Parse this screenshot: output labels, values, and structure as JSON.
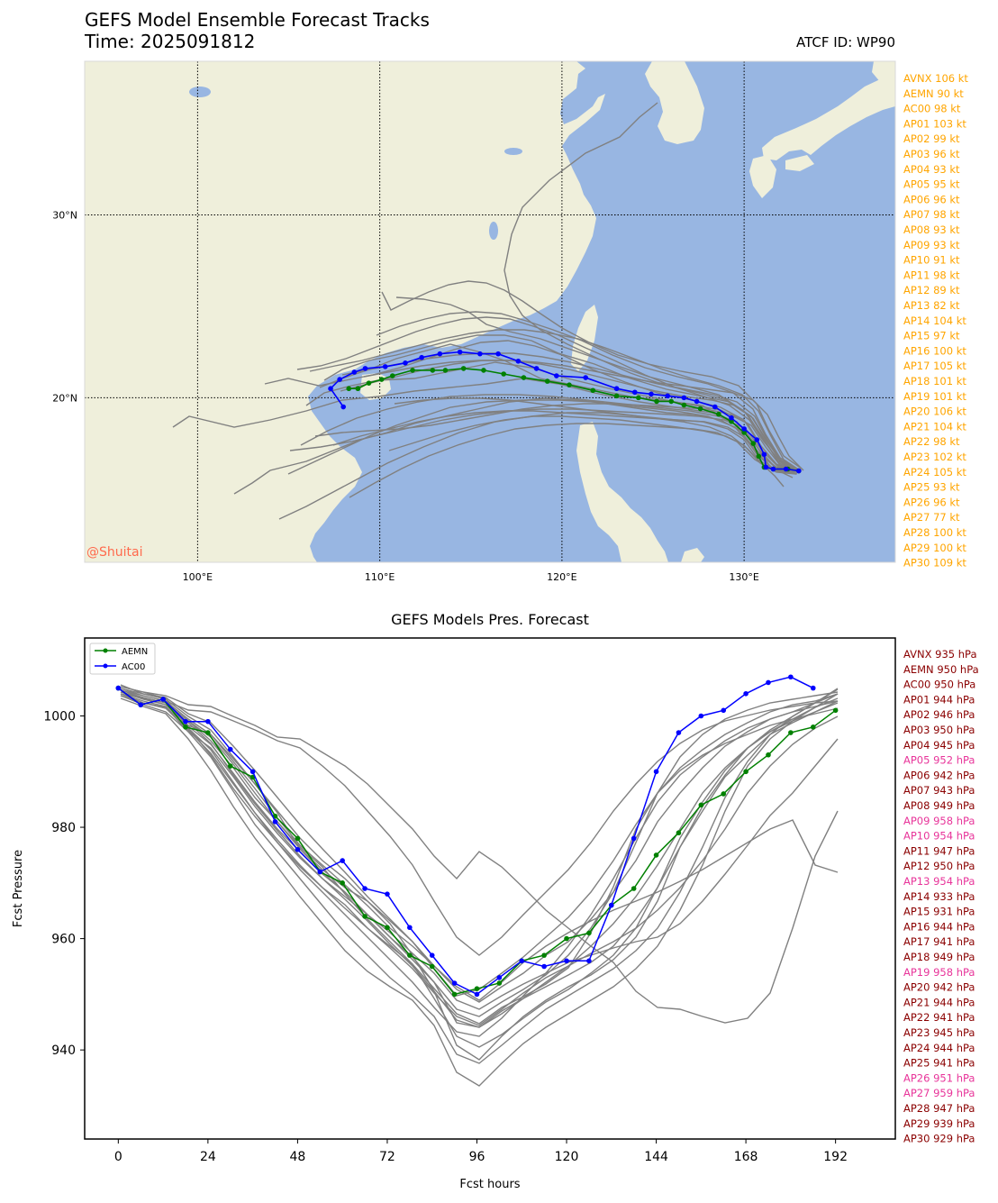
{
  "header": {
    "title": "GEFS Model Ensemble Forecast Tracks",
    "time_label": "Time: 2025091812",
    "atcf_label": "ATCF ID: WP90"
  },
  "map": {
    "watermark": "@Shuitai",
    "colors": {
      "land": "#efefdb",
      "ocean": "#98b6e2",
      "grid": "#000000",
      "ensemble": "#808080",
      "aemn": "#008000",
      "ac00": "#0000ff",
      "intensity_label": "#ffa500"
    },
    "lon_range": [
      93.8,
      138.3
    ],
    "lat_range": [
      11,
      38.4
    ],
    "lon_ticks": [
      {
        "v": 100,
        "label": "100°E"
      },
      {
        "v": 110,
        "label": "110°E"
      },
      {
        "v": 120,
        "label": "120°E"
      },
      {
        "v": 130,
        "label": "130°E"
      }
    ],
    "lat_ticks": [
      {
        "v": 30,
        "label": "30°N"
      },
      {
        "v": 20,
        "label": "20°N"
      }
    ],
    "intensity_labels": [
      "AVNX 106 kt",
      "AEMN 90 kt",
      "AC00 98 kt",
      "AP01 103 kt",
      "AP02 99 kt",
      "AP03 96 kt",
      "AP04 93 kt",
      "AP05 95 kt",
      "AP06 96 kt",
      "AP07 98 kt",
      "AP08 93 kt",
      "AP09 93 kt",
      "AP10 91 kt",
      "AP11 98 kt",
      "AP12 89 kt",
      "AP13 82 kt",
      "AP14 104 kt",
      "AP15 97 kt",
      "AP16 100 kt",
      "AP17 105 kt",
      "AP18 101 kt",
      "AP19 101 kt",
      "AP20 106 kt",
      "AP21 104 kt",
      "AP22 98 kt",
      "AP23 102 kt",
      "AP24 105 kt",
      "AP25 93 kt",
      "AP26 96 kt",
      "AP27 77 kt",
      "AP28 100 kt",
      "AP29 100 kt",
      "AP30 109 kt"
    ]
  },
  "chart_data": [
    {
      "type": "line",
      "subtype": "map-tracks",
      "title": "GEFS Model Ensemble Forecast Tracks",
      "xlim": [
        93.8,
        138.3
      ],
      "ylim": [
        11,
        38.4
      ],
      "series": [
        {
          "name": "AEMN",
          "color": "#008000",
          "lon": [
            133.0,
            132.4,
            131.6,
            131.1,
            130.8,
            130.5,
            130.0,
            129.3,
            128.6,
            127.6,
            126.7,
            126.0,
            125.2,
            124.2,
            123.0,
            121.7,
            120.4,
            119.2,
            117.9,
            116.8,
            115.7,
            114.6,
            113.6,
            112.9,
            111.8,
            110.7,
            110.1,
            109.4,
            108.8,
            108.3
          ],
          "lat": [
            16.0,
            16.1,
            16.1,
            16.2,
            16.8,
            17.5,
            18.1,
            18.7,
            19.1,
            19.4,
            19.6,
            19.8,
            19.8,
            20.0,
            20.1,
            20.4,
            20.7,
            20.9,
            21.1,
            21.3,
            21.5,
            21.6,
            21.5,
            21.5,
            21.5,
            21.2,
            21.0,
            20.8,
            20.5,
            20.5
          ]
        },
        {
          "name": "AC00",
          "color": "#0000ff",
          "lon": [
            133.0,
            132.3,
            131.6,
            131.2,
            131.1,
            130.7,
            130.0,
            129.3,
            128.4,
            127.4,
            126.7,
            125.8,
            124.9,
            124.0,
            123.0,
            121.3,
            119.7,
            118.6,
            117.6,
            116.5,
            115.5,
            114.4,
            113.3,
            112.3,
            111.4,
            110.3,
            109.2,
            108.6,
            107.8,
            107.3,
            108.0
          ],
          "lat": [
            16.0,
            16.1,
            16.1,
            16.2,
            16.9,
            17.7,
            18.3,
            18.9,
            19.5,
            19.8,
            20.0,
            20.1,
            20.2,
            20.3,
            20.5,
            21.1,
            21.2,
            21.6,
            22.0,
            22.4,
            22.4,
            22.5,
            22.4,
            22.2,
            21.9,
            21.7,
            21.6,
            21.4,
            21.0,
            20.5,
            19.5
          ]
        }
      ],
      "lines_no_markers": "30 grey ensemble member tracks (AP01–AP30, AVNX)"
    },
    {
      "type": "line",
      "title": "GEFS Models Pres. Forecast",
      "xlabel": "Fcst hours",
      "ylabel": "Fcst Pressure",
      "xlim": [
        -9,
        208
      ],
      "ylim": [
        924,
        1014
      ],
      "xticks": [
        0,
        24,
        48,
        72,
        96,
        120,
        144,
        168,
        192
      ],
      "yticks": [
        940,
        960,
        980,
        1000
      ],
      "legend": "top-left",
      "series": [
        {
          "name": "AEMN",
          "color": "#008000",
          "x": [
            0,
            6,
            12,
            18,
            24,
            30,
            36,
            42,
            48,
            54,
            60,
            66,
            72,
            78,
            84,
            90,
            96,
            102,
            108,
            114,
            120,
            126,
            132,
            138,
            144,
            150,
            156,
            162,
            168,
            174,
            180,
            186,
            192
          ],
          "values": [
            1005,
            1002,
            1003,
            998,
            997,
            991,
            989,
            982,
            978,
            972,
            970,
            964,
            962,
            957,
            955,
            950,
            951,
            952,
            956,
            957,
            960,
            961,
            966,
            969,
            975,
            979,
            984,
            986,
            990,
            993,
            997,
            998,
            1001
          ]
        },
        {
          "name": "AC00",
          "color": "#0000ff",
          "x": [
            0,
            6,
            12,
            18,
            24,
            30,
            36,
            42,
            48,
            54,
            60,
            66,
            72,
            78,
            84,
            90,
            96,
            102,
            108,
            114,
            120,
            126,
            132,
            138,
            144,
            150,
            156,
            162,
            168,
            174,
            180,
            186
          ],
          "values": [
            1005,
            1002,
            1003,
            999,
            999,
            994,
            990,
            981,
            976,
            972,
            974,
            969,
            968,
            962,
            957,
            952,
            950,
            953,
            956,
            955,
            956,
            956,
            966,
            978,
            990,
            997,
            1000,
            1001,
            1004,
            1006,
            1007,
            1005
          ]
        }
      ],
      "pressure_labels": [
        "AVNX 935 hPa",
        "AEMN 950 hPa",
        "AC00 950 hPa",
        "AP01 944 hPa",
        "AP02 946 hPa",
        "AP03 950 hPa",
        "AP04 945 hPa",
        "AP05 952 hPa",
        "AP06 942 hPa",
        "AP07 943 hPa",
        "AP08 949 hPa",
        "AP09 958 hPa",
        "AP10 954 hPa",
        "AP11 947 hPa",
        "AP12 950 hPa",
        "AP13 954 hPa",
        "AP14 933 hPa",
        "AP15 931 hPa",
        "AP16 944 hPa",
        "AP17 941 hPa",
        "AP18 949 hPa",
        "AP19 958 hPa",
        "AP20 942 hPa",
        "AP21 944 hPa",
        "AP22 941 hPa",
        "AP23 945 hPa",
        "AP24 944 hPa",
        "AP25 941 hPa",
        "AP26 951 hPa",
        "AP27 959 hPa",
        "AP28 947 hPa",
        "AP29 939 hPa",
        "AP30 929 hPa"
      ],
      "pressure_label_colors": {
        "normal": "#8b0000",
        "weak": "#e8359a"
      }
    }
  ]
}
